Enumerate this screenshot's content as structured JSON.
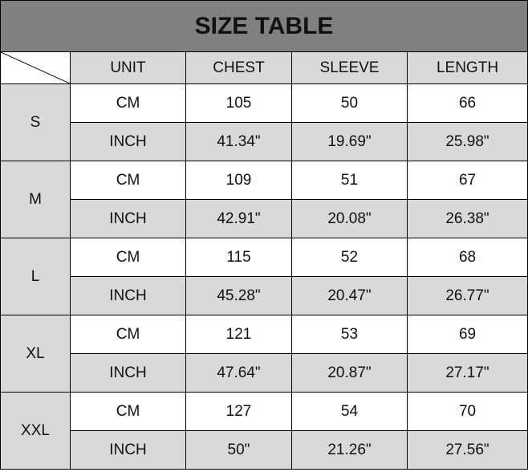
{
  "title": "SIZE TABLE",
  "headers": [
    "UNIT",
    "CHEST",
    "SLEEVE",
    "LENGTH"
  ],
  "colors": {
    "title_bg": "#808080",
    "shaded_bg": "#d9d9d9",
    "white_bg": "#ffffff",
    "border": "#000000"
  },
  "rows": [
    {
      "size": "S",
      "cm": {
        "unit": "CM",
        "chest": "105",
        "sleeve": "50",
        "length": "66"
      },
      "inch": {
        "unit": "INCH",
        "chest": "41.34\"",
        "sleeve": "19.69\"",
        "length": "25.98\""
      }
    },
    {
      "size": "M",
      "cm": {
        "unit": "CM",
        "chest": "109",
        "sleeve": "51",
        "length": "67"
      },
      "inch": {
        "unit": "INCH",
        "chest": "42.91\"",
        "sleeve": "20.08\"",
        "length": "26.38\""
      }
    },
    {
      "size": "L",
      "cm": {
        "unit": "CM",
        "chest": "115",
        "sleeve": "52",
        "length": "68"
      },
      "inch": {
        "unit": "INCH",
        "chest": "45.28\"",
        "sleeve": "20.47\"",
        "length": "26.77\""
      }
    },
    {
      "size": "XL",
      "cm": {
        "unit": "CM",
        "chest": "121",
        "sleeve": "53",
        "length": "69"
      },
      "inch": {
        "unit": "INCH",
        "chest": "47.64\"",
        "sleeve": "20.87\"",
        "length": "27.17\""
      }
    },
    {
      "size": "XXL",
      "cm": {
        "unit": "CM",
        "chest": "127",
        "sleeve": "54",
        "length": "70"
      },
      "inch": {
        "unit": "INCH",
        "chest": "50\"",
        "sleeve": "21.26\"",
        "length": "27.56\""
      }
    }
  ]
}
